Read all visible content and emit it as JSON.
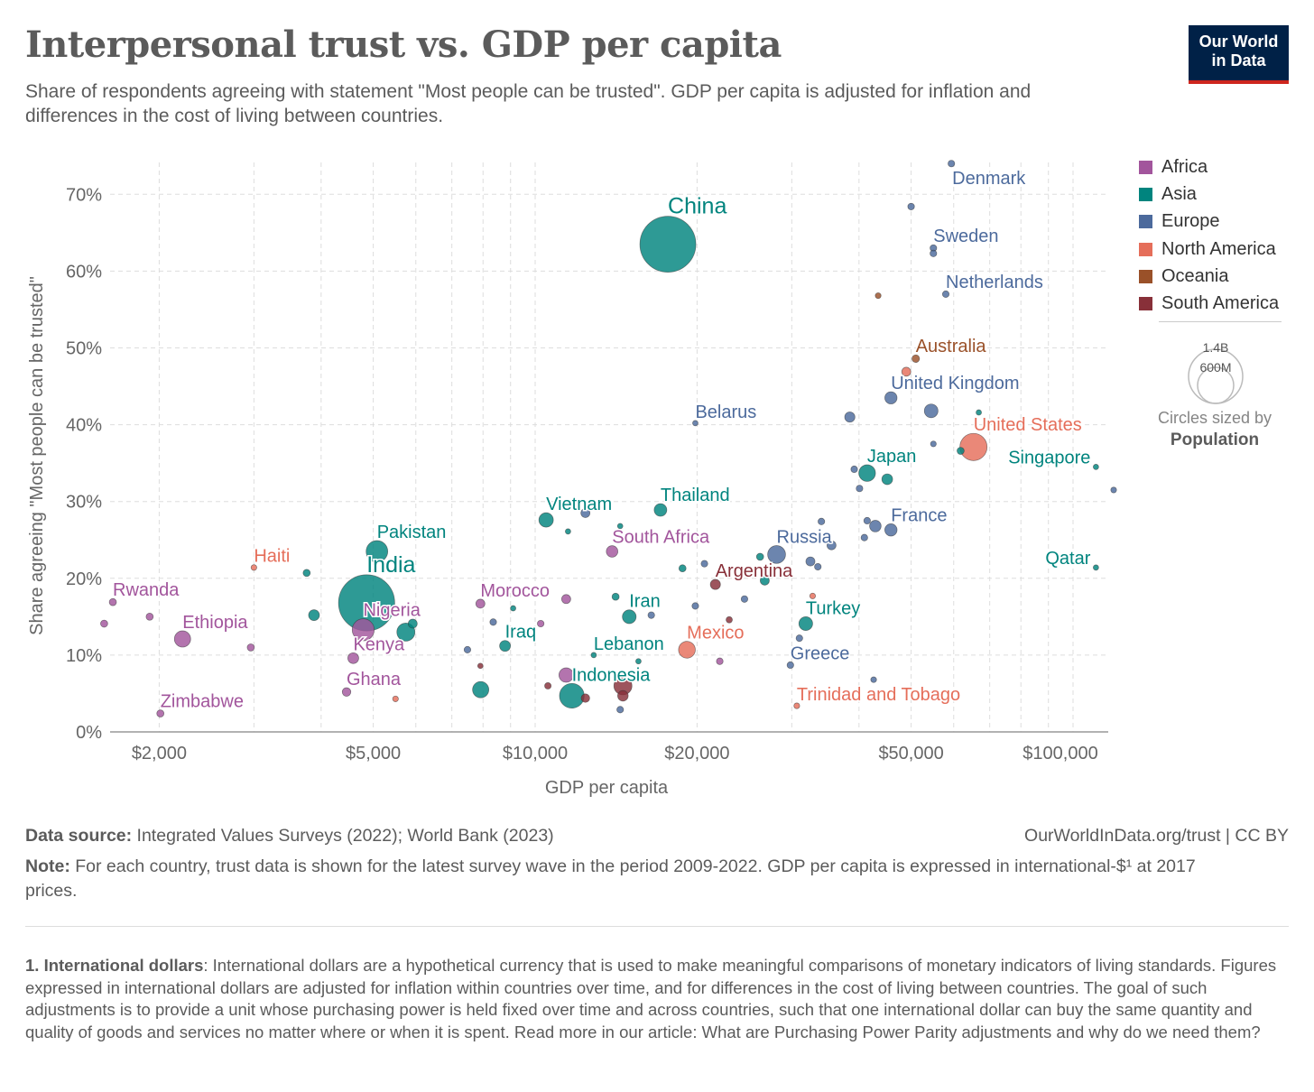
{
  "header": {
    "title": "Interpersonal trust vs. GDP per capita",
    "subtitle": "Share of respondents agreeing with statement \"Most people can be trusted\". GDP per capita is adjusted for inflation and differences in the cost of living between countries.",
    "logo_line1": "Our World",
    "logo_line2": "in Data"
  },
  "legend": {
    "items": [
      {
        "label": "Africa",
        "color": "#a2559c"
      },
      {
        "label": "Asia",
        "color": "#00847e"
      },
      {
        "label": "Europe",
        "color": "#4c6a9c"
      },
      {
        "label": "North America",
        "color": "#e56e5a"
      },
      {
        "label": "Oceania",
        "color": "#9a5129"
      },
      {
        "label": "South America",
        "color": "#883039"
      }
    ],
    "size_large": "1.4B",
    "size_small": "600M",
    "size_caption": "Circles sized by",
    "size_variable": "Population"
  },
  "footer": {
    "source_label": "Data source:",
    "source_text": "Integrated Values Surveys (2022); World Bank (2023)",
    "url": "OurWorldInData.org/trust | CC BY",
    "note_label": "Note:",
    "note_text": "For each country, trust data is shown for the latest survey wave in the period 2009-2022. GDP per capita is expressed in international-$¹ at 2017 prices.",
    "footnote_label": "1. International dollars",
    "footnote_text": ": International dollars are a hypothetical currency that is used to make meaningful comparisons of monetary indicators of living standards. Figures expressed in international dollars are adjusted for inflation within countries over time, and for differences in the cost of living between countries. The goal of such adjustments is to provide a unit whose purchasing power is held fixed over time and across countries, such that one international dollar can buy the same quantity and quality of goods and services no matter where or when it is spent. Read more in our article: What are Purchasing Power Parity adjustments and why do we need them?"
  },
  "chart_data": {
    "type": "scatter",
    "title": "Interpersonal trust vs. GDP per capita",
    "xlabel": "GDP per capita",
    "ylabel": "Share agreeing \"Most people can be trusted\"",
    "xscale": "log",
    "xlim": [
      1620,
      116000
    ],
    "ylim": [
      0,
      74
    ],
    "grid": true,
    "legend_position": "right",
    "x_ticks": [
      {
        "value": 2000,
        "label": "$2,000"
      },
      {
        "value": 5000,
        "label": "$5,000"
      },
      {
        "value": 10000,
        "label": "$10,000"
      },
      {
        "value": 20000,
        "label": "$20,000"
      },
      {
        "value": 50000,
        "label": "$50,000"
      },
      {
        "value": 100000,
        "label": "$100,000"
      }
    ],
    "y_ticks": [
      {
        "value": 0,
        "label": "0%"
      },
      {
        "value": 10,
        "label": "10%"
      },
      {
        "value": 20,
        "label": "20%"
      },
      {
        "value": 30,
        "label": "30%"
      },
      {
        "value": 40,
        "label": "40%"
      },
      {
        "value": 50,
        "label": "50%"
      },
      {
        "value": 60,
        "label": "60%"
      },
      {
        "value": 70,
        "label": "70%"
      }
    ],
    "points": [
      {
        "name": "China",
        "region": "Asia",
        "gdp": 17650,
        "trust": 63.5,
        "pop": 1410,
        "big": true
      },
      {
        "name": "India",
        "region": "Asia",
        "gdp": 4860,
        "trust": 16.8,
        "pop": 1420,
        "big": true
      },
      {
        "name": "Pakistan",
        "region": "Asia",
        "gdp": 5080,
        "trust": 23.5,
        "pop": 211
      },
      {
        "region": "Asia",
        "gdp": 3760,
        "trust": 20.7,
        "pop": 23
      },
      {
        "region": "Asia",
        "gdp": 3880,
        "trust": 15.2,
        "pop": 53
      },
      {
        "region": "Asia",
        "gdp": 5750,
        "trust": 13.0,
        "pop": 147
      },
      {
        "region": "Asia",
        "gdp": 5920,
        "trust": 14.1,
        "pop": 37
      },
      {
        "name": "Vietnam",
        "region": "Asia",
        "gdp": 10480,
        "trust": 27.6,
        "pop": 94
      },
      {
        "region": "Asia",
        "gdp": 11510,
        "trust": 26.1,
        "pop": 13
      },
      {
        "name": "Thailand",
        "region": "Asia",
        "gdp": 17100,
        "trust": 28.9,
        "pop": 72
      },
      {
        "name": "Iraq",
        "region": "Asia",
        "gdp": 8790,
        "trust": 11.2,
        "pop": 53
      },
      {
        "region": "Asia",
        "gdp": 9100,
        "trust": 16.1,
        "pop": 13
      },
      {
        "region": "Asia",
        "gdp": 7920,
        "trust": 5.5,
        "pop": 119
      },
      {
        "name": "Indonesia",
        "region": "Asia",
        "gdp": 11700,
        "trust": 4.7,
        "pop": 275
      },
      {
        "name": "Iran",
        "region": "Asia",
        "gdp": 14960,
        "trust": 15.0,
        "pop": 85
      },
      {
        "region": "Asia",
        "gdp": 14110,
        "trust": 17.6,
        "pop": 23
      },
      {
        "name": "Lebanon",
        "region": "Asia",
        "gdp": 12850,
        "trust": 10.0,
        "pop": 13
      },
      {
        "region": "Asia",
        "gdp": 15560,
        "trust": 9.2,
        "pop": 13
      },
      {
        "region": "Asia",
        "gdp": 18790,
        "trust": 21.3,
        "pop": 23
      },
      {
        "region": "Asia",
        "gdp": 26190,
        "trust": 22.8,
        "pop": 23
      },
      {
        "region": "Asia",
        "gdp": 26720,
        "trust": 19.7,
        "pop": 37
      },
      {
        "name": "Turkey",
        "region": "Asia",
        "gdp": 31850,
        "trust": 14.1,
        "pop": 85
      },
      {
        "name": "Japan",
        "region": "Asia",
        "gdp": 41420,
        "trust": 33.7,
        "pop": 125
      },
      {
        "region": "Asia",
        "gdp": 45140,
        "trust": 32.9,
        "pop": 52
      },
      {
        "region": "Asia",
        "gdp": 61800,
        "trust": 36.6,
        "pop": 23
      },
      {
        "region": "Asia",
        "gdp": 66800,
        "trust": 41.6,
        "pop": 13
      },
      {
        "name": "Qatar",
        "region": "Asia",
        "gdp": 110300,
        "trust": 21.4,
        "pop": 13,
        "label_left": true
      },
      {
        "name": "Singapore",
        "region": "Asia",
        "gdp": 110300,
        "trust": 34.5,
        "pop": 13,
        "label_left": true
      },
      {
        "region": "Asia",
        "gdp": 14390,
        "trust": 26.8,
        "pop": 13
      },
      {
        "name": "Nigeria",
        "region": "Africa",
        "gdp": 4790,
        "trust": 13.3,
        "pop": 218
      },
      {
        "name": "Rwanda",
        "region": "Africa",
        "gdp": 1640,
        "trust": 16.9,
        "pop": 23
      },
      {
        "region": "Africa",
        "gdp": 1580,
        "trust": 14.1,
        "pop": 23
      },
      {
        "region": "Africa",
        "gdp": 1920,
        "trust": 15.0,
        "pop": 23
      },
      {
        "name": "Ethiopia",
        "region": "Africa",
        "gdp": 2210,
        "trust": 12.1,
        "pop": 119
      },
      {
        "name": "Zimbabwe",
        "region": "Africa",
        "gdp": 2010,
        "trust": 2.4,
        "pop": 23
      },
      {
        "region": "Africa",
        "gdp": 2960,
        "trust": 11.0,
        "pop": 23
      },
      {
        "name": "Kenya",
        "region": "Africa",
        "gdp": 4590,
        "trust": 9.6,
        "pop": 53
      },
      {
        "name": "Ghana",
        "region": "Africa",
        "gdp": 4460,
        "trust": 5.2,
        "pop": 33
      },
      {
        "name": "Morocco",
        "region": "Africa",
        "gdp": 7910,
        "trust": 16.7,
        "pop": 37
      },
      {
        "region": "Africa",
        "gdp": 10240,
        "trust": 14.1,
        "pop": 20
      },
      {
        "region": "Africa",
        "gdp": 11420,
        "trust": 17.3,
        "pop": 37
      },
      {
        "name": "South Africa",
        "region": "Africa",
        "gdp": 13900,
        "trust": 23.5,
        "pop": 60
      },
      {
        "region": "Africa",
        "gdp": 11420,
        "trust": 7.4,
        "pop": 94
      },
      {
        "region": "Africa",
        "gdp": 22040,
        "trust": 9.2,
        "pop": 20
      },
      {
        "name": "Denmark",
        "region": "Europe",
        "gdp": 59400,
        "trust": 74.0,
        "pop": 20,
        "label_below": true
      },
      {
        "region": "Europe",
        "gdp": 50000,
        "trust": 68.4,
        "pop": 20
      },
      {
        "name": "Sweden",
        "region": "Europe",
        "gdp": 55000,
        "trust": 63.0,
        "pop": 20
      },
      {
        "region": "Europe",
        "gdp": 55000,
        "trust": 62.3,
        "pop": 20
      },
      {
        "name": "Netherlands",
        "region": "Europe",
        "gdp": 58000,
        "trust": 57.0,
        "pop": 20
      },
      {
        "name": "United Kingdom",
        "region": "Europe",
        "gdp": 45860,
        "trust": 43.5,
        "pop": 67
      },
      {
        "region": "Europe",
        "gdp": 54480,
        "trust": 41.8,
        "pop": 84
      },
      {
        "region": "Europe",
        "gdp": 38460,
        "trust": 41.0,
        "pop": 47
      },
      {
        "name": "Belarus",
        "region": "Europe",
        "gdp": 19850,
        "trust": 40.2,
        "pop": 13
      },
      {
        "region": "Europe",
        "gdp": 55000,
        "trust": 37.5,
        "pop": 15
      },
      {
        "region": "Europe",
        "gdp": 39190,
        "trust": 34.2,
        "pop": 20
      },
      {
        "region": "Europe",
        "gdp": 40090,
        "trust": 31.7,
        "pop": 20
      },
      {
        "region": "Europe",
        "gdp": 119000,
        "trust": 31.5,
        "pop": 15
      },
      {
        "region": "Europe",
        "gdp": 34050,
        "trust": 27.4,
        "pop": 20
      },
      {
        "name": "France",
        "region": "Europe",
        "gdp": 45860,
        "trust": 26.3,
        "pop": 68
      },
      {
        "region": "Europe",
        "gdp": 42900,
        "trust": 26.8,
        "pop": 60
      },
      {
        "region": "Europe",
        "gdp": 41420,
        "trust": 27.5,
        "pop": 20
      },
      {
        "region": "Europe",
        "gdp": 40930,
        "trust": 25.3,
        "pop": 20
      },
      {
        "name": "Russia",
        "region": "Europe",
        "gdp": 28110,
        "trust": 23.1,
        "pop": 144
      },
      {
        "region": "Europe",
        "gdp": 35560,
        "trust": 24.3,
        "pop": 37
      },
      {
        "region": "Europe",
        "gdp": 32490,
        "trust": 22.2,
        "pop": 37
      },
      {
        "region": "Europe",
        "gdp": 33540,
        "trust": 21.5,
        "pop": 20
      },
      {
        "region": "Europe",
        "gdp": 20640,
        "trust": 21.9,
        "pop": 20
      },
      {
        "region": "Europe",
        "gdp": 12400,
        "trust": 28.5,
        "pop": 37
      },
      {
        "region": "Europe",
        "gdp": 19850,
        "trust": 16.4,
        "pop": 20
      },
      {
        "region": "Europe",
        "gdp": 24500,
        "trust": 17.3,
        "pop": 20
      },
      {
        "region": "Europe",
        "gdp": 8356,
        "trust": 14.3,
        "pop": 20
      },
      {
        "region": "Europe",
        "gdp": 7483,
        "trust": 10.7,
        "pop": 20
      },
      {
        "region": "Europe",
        "gdp": 16440,
        "trust": 15.2,
        "pop": 20
      },
      {
        "name": "Greece",
        "region": "Europe",
        "gdp": 29820,
        "trust": 8.7,
        "pop": 20
      },
      {
        "region": "Europe",
        "gdp": 30990,
        "trust": 12.2,
        "pop": 20
      },
      {
        "region": "Europe",
        "gdp": 42590,
        "trust": 6.8,
        "pop": 15
      },
      {
        "region": "Europe",
        "gdp": 14390,
        "trust": 2.9,
        "pop": 20
      },
      {
        "name": "United States",
        "region": "North America",
        "gdp": 65300,
        "trust": 37.1,
        "pop": 333
      },
      {
        "name": "Mexico",
        "region": "North America",
        "gdp": 19150,
        "trust": 10.7,
        "pop": 127
      },
      {
        "name": "Haiti",
        "region": "North America",
        "gdp": 3000,
        "trust": 21.4,
        "pop": 15
      },
      {
        "region": "North America",
        "gdp": 5500,
        "trust": 4.3,
        "pop": 15
      },
      {
        "name": "Trinidad and Tobago",
        "region": "North America",
        "gdp": 30650,
        "trust": 3.4,
        "pop": 15
      },
      {
        "region": "North America",
        "gdp": 48980,
        "trust": 46.9,
        "pop": 37
      },
      {
        "region": "North America",
        "gdp": 32800,
        "trust": 17.7,
        "pop": 15
      },
      {
        "name": "Australia",
        "region": "Oceania",
        "gdp": 51000,
        "trust": 48.6,
        "pop": 26
      },
      {
        "region": "Oceania",
        "gdp": 43420,
        "trust": 56.8,
        "pop": 15
      },
      {
        "name": "Argentina",
        "region": "South America",
        "gdp": 21630,
        "trust": 19.2,
        "pop": 46
      },
      {
        "region": "South America",
        "gdp": 22950,
        "trust": 14.6,
        "pop": 18
      },
      {
        "region": "South America",
        "gdp": 7910,
        "trust": 8.6,
        "pop": 13
      },
      {
        "region": "South America",
        "gdp": 10560,
        "trust": 6.0,
        "pop": 19
      },
      {
        "region": "South America",
        "gdp": 12400,
        "trust": 4.4,
        "pop": 33
      },
      {
        "region": "South America",
        "gdp": 14560,
        "trust": 4.7,
        "pop": 50
      },
      {
        "region": "South America",
        "gdp": 14560,
        "trust": 6.0,
        "pop": 147
      }
    ]
  }
}
